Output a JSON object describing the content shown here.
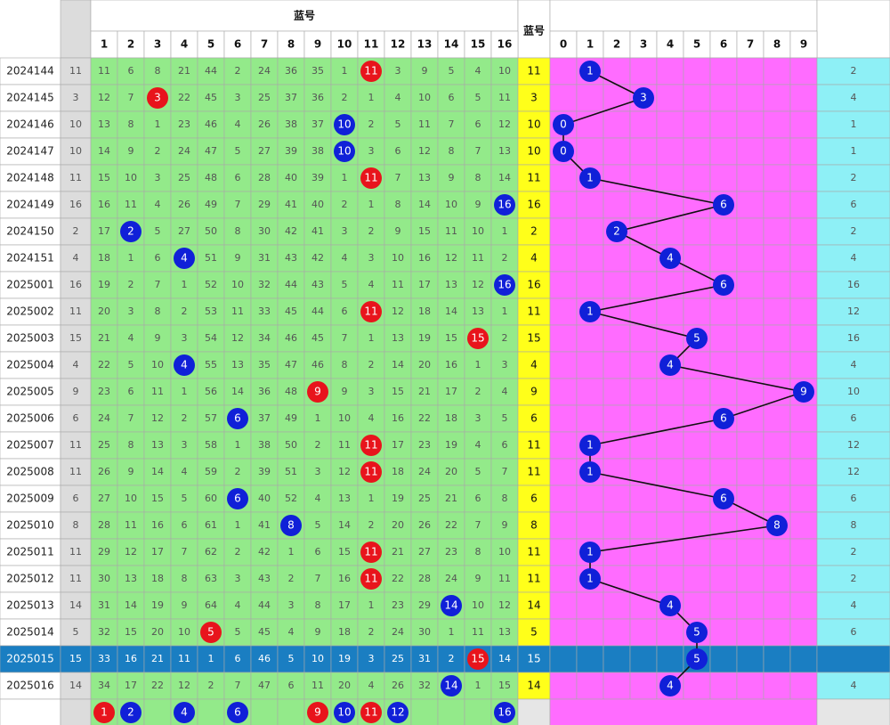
{
  "header": {
    "blue_title": "蓝号",
    "blue_column": "蓝号",
    "columns": [
      "1",
      "2",
      "3",
      "4",
      "5",
      "6",
      "7",
      "8",
      "9",
      "10",
      "11",
      "12",
      "13",
      "14",
      "15",
      "16"
    ],
    "digits": [
      "0",
      "1",
      "2",
      "3",
      "4",
      "5",
      "6",
      "7",
      "8",
      "9"
    ]
  },
  "colors": {
    "odd_ball": "#e8141c",
    "even_ball": "#1020d8",
    "cell": "#93ea8a",
    "blue_column": "#ffff1a",
    "digit_area": "#ff6cff",
    "extra": "#8ef0f6",
    "index": "#dcdcdc",
    "selected": "#1a7ec2"
  },
  "rows": [
    {
      "issue": "2024144",
      "blue": 11,
      "cells": [
        11,
        6,
        8,
        21,
        44,
        2,
        24,
        36,
        35,
        1,
        11,
        3,
        9,
        5,
        4,
        10
      ],
      "digit": 1,
      "extra": 2
    },
    {
      "issue": "2024145",
      "blue": 3,
      "cells": [
        12,
        7,
        3,
        22,
        45,
        3,
        25,
        37,
        36,
        2,
        1,
        4,
        10,
        6,
        5,
        11
      ],
      "digit": 3,
      "extra": 4
    },
    {
      "issue": "2024146",
      "blue": 10,
      "cells": [
        13,
        8,
        1,
        23,
        46,
        4,
        26,
        38,
        37,
        10,
        2,
        5,
        11,
        7,
        6,
        12
      ],
      "digit": 0,
      "extra": 1
    },
    {
      "issue": "2024147",
      "blue": 10,
      "cells": [
        14,
        9,
        2,
        24,
        47,
        5,
        27,
        39,
        38,
        10,
        3,
        6,
        12,
        8,
        7,
        13
      ],
      "digit": 0,
      "extra": 1
    },
    {
      "issue": "2024148",
      "blue": 11,
      "cells": [
        15,
        10,
        3,
        25,
        48,
        6,
        28,
        40,
        39,
        1,
        11,
        7,
        13,
        9,
        8,
        14
      ],
      "digit": 1,
      "extra": 2
    },
    {
      "issue": "2024149",
      "blue": 16,
      "cells": [
        16,
        11,
        4,
        26,
        49,
        7,
        29,
        41,
        40,
        2,
        1,
        8,
        14,
        10,
        9,
        16
      ],
      "digit": 6,
      "extra": 6
    },
    {
      "issue": "2024150",
      "blue": 2,
      "cells": [
        17,
        2,
        5,
        27,
        50,
        8,
        30,
        42,
        41,
        3,
        2,
        9,
        15,
        11,
        10,
        1
      ],
      "digit": 2,
      "extra": 2
    },
    {
      "issue": "2024151",
      "blue": 4,
      "cells": [
        18,
        1,
        6,
        4,
        51,
        9,
        31,
        43,
        42,
        4,
        3,
        10,
        16,
        12,
        11,
        2
      ],
      "digit": 4,
      "extra": 4
    },
    {
      "issue": "2025001",
      "blue": 16,
      "cells": [
        19,
        2,
        7,
        1,
        52,
        10,
        32,
        44,
        43,
        5,
        4,
        11,
        17,
        13,
        12,
        16
      ],
      "digit": 6,
      "extra": 16
    },
    {
      "issue": "2025002",
      "blue": 11,
      "cells": [
        20,
        3,
        8,
        2,
        53,
        11,
        33,
        45,
        44,
        6,
        11,
        12,
        18,
        14,
        13,
        1
      ],
      "digit": 1,
      "extra": 12
    },
    {
      "issue": "2025003",
      "blue": 15,
      "cells": [
        21,
        4,
        9,
        3,
        54,
        12,
        34,
        46,
        45,
        7,
        1,
        13,
        19,
        15,
        15,
        2
      ],
      "digit": 5,
      "extra": 16
    },
    {
      "issue": "2025004",
      "blue": 4,
      "cells": [
        22,
        5,
        10,
        4,
        55,
        13,
        35,
        47,
        46,
        8,
        2,
        14,
        20,
        16,
        1,
        3
      ],
      "digit": 4,
      "extra": 4
    },
    {
      "issue": "2025005",
      "blue": 9,
      "cells": [
        23,
        6,
        11,
        1,
        56,
        14,
        36,
        48,
        9,
        9,
        3,
        15,
        21,
        17,
        2,
        4
      ],
      "digit": 9,
      "extra": 10
    },
    {
      "issue": "2025006",
      "blue": 6,
      "cells": [
        24,
        7,
        12,
        2,
        57,
        6,
        37,
        49,
        1,
        10,
        4,
        16,
        22,
        18,
        3,
        5
      ],
      "digit": 6,
      "extra": 6
    },
    {
      "issue": "2025007",
      "blue": 11,
      "cells": [
        25,
        8,
        13,
        3,
        58,
        1,
        38,
        50,
        2,
        11,
        11,
        17,
        23,
        19,
        4,
        6
      ],
      "digit": 1,
      "extra": 12
    },
    {
      "issue": "2025008",
      "blue": 11,
      "cells": [
        26,
        9,
        14,
        4,
        59,
        2,
        39,
        51,
        3,
        12,
        11,
        18,
        24,
        20,
        5,
        7
      ],
      "digit": 1,
      "extra": 12
    },
    {
      "issue": "2025009",
      "blue": 6,
      "cells": [
        27,
        10,
        15,
        5,
        60,
        6,
        40,
        52,
        4,
        13,
        1,
        19,
        25,
        21,
        6,
        8
      ],
      "digit": 6,
      "extra": 6
    },
    {
      "issue": "2025010",
      "blue": 8,
      "cells": [
        28,
        11,
        16,
        6,
        61,
        1,
        41,
        8,
        5,
        14,
        2,
        20,
        26,
        22,
        7,
        9
      ],
      "digit": 8,
      "extra": 8
    },
    {
      "issue": "2025011",
      "blue": 11,
      "cells": [
        29,
        12,
        17,
        7,
        62,
        2,
        42,
        1,
        6,
        15,
        11,
        21,
        27,
        23,
        8,
        10
      ],
      "digit": 1,
      "extra": 2
    },
    {
      "issue": "2025012",
      "blue": 11,
      "cells": [
        30,
        13,
        18,
        8,
        63,
        3,
        43,
        2,
        7,
        16,
        11,
        22,
        28,
        24,
        9,
        11
      ],
      "digit": 1,
      "extra": 2
    },
    {
      "issue": "2025013",
      "blue": 14,
      "cells": [
        31,
        14,
        19,
        9,
        64,
        4,
        44,
        3,
        8,
        17,
        1,
        23,
        29,
        14,
        10,
        12
      ],
      "digit": 4,
      "extra": 4
    },
    {
      "issue": "2025014",
      "blue": 5,
      "cells": [
        32,
        15,
        20,
        10,
        5,
        5,
        45,
        4,
        9,
        18,
        2,
        24,
        30,
        1,
        11,
        13
      ],
      "digit": 5,
      "extra": 6
    },
    {
      "issue": "2025015",
      "blue": 15,
      "cells": [
        33,
        16,
        21,
        11,
        1,
        6,
        46,
        5,
        10,
        19,
        3,
        25,
        31,
        2,
        15,
        14
      ],
      "digit": 5,
      "extra": null
    },
    {
      "issue": "2025016",
      "blue": 14,
      "cells": [
        34,
        17,
        22,
        12,
        2,
        7,
        47,
        6,
        11,
        20,
        4,
        26,
        32,
        14,
        1,
        15
      ],
      "digit": 4,
      "extra": 4
    }
  ],
  "summary": [
    1,
    2,
    null,
    4,
    null,
    6,
    null,
    null,
    9,
    10,
    11,
    12,
    null,
    null,
    null,
    16
  ]
}
